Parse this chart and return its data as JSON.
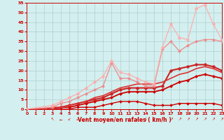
{
  "xlabel": "Vent moyen/en rafales ( km/h )",
  "xlim": [
    0,
    23
  ],
  "ylim": [
    0,
    55
  ],
  "yticks": [
    0,
    5,
    10,
    15,
    20,
    25,
    30,
    35,
    40,
    45,
    50,
    55
  ],
  "xticks": [
    0,
    1,
    2,
    3,
    4,
    5,
    6,
    7,
    8,
    9,
    10,
    11,
    12,
    13,
    14,
    15,
    16,
    17,
    18,
    19,
    20,
    21,
    22,
    23
  ],
  "bg_color": "#d4efef",
  "grid_color": "#aed0d0",
  "lines": [
    {
      "comment": "darkest red - small humped line near bottom, with markers",
      "x": [
        0,
        1,
        2,
        3,
        4,
        5,
        6,
        7,
        8,
        9,
        10,
        11,
        12,
        13,
        14,
        15,
        16,
        17,
        18,
        19,
        20,
        21,
        22,
        23
      ],
      "y": [
        0,
        0,
        0,
        0,
        0,
        0,
        1,
        1,
        1,
        2,
        3,
        4,
        4,
        4,
        3,
        2,
        2,
        2,
        3,
        3,
        3,
        3,
        3,
        2
      ],
      "color": "#cc0000",
      "lw": 1.0,
      "marker": "D",
      "ms": 2.0,
      "alpha": 1.0
    },
    {
      "comment": "dark red - gradually rising with slight dip, markers",
      "x": [
        0,
        1,
        2,
        3,
        4,
        5,
        6,
        7,
        8,
        9,
        10,
        11,
        12,
        13,
        14,
        15,
        16,
        17,
        18,
        19,
        20,
        21,
        22,
        23
      ],
      "y": [
        0,
        0,
        0,
        0,
        1,
        1,
        2,
        3,
        4,
        5,
        6,
        8,
        9,
        9,
        9,
        9,
        10,
        12,
        14,
        15,
        17,
        18,
        17,
        16
      ],
      "color": "#cc0000",
      "lw": 1.3,
      "marker": "D",
      "ms": 2.2,
      "alpha": 1.0
    },
    {
      "comment": "medium dark red - rises more steeply, with spike at x=17, markers",
      "x": [
        0,
        1,
        2,
        3,
        4,
        5,
        6,
        7,
        8,
        9,
        10,
        11,
        12,
        13,
        14,
        15,
        16,
        17,
        18,
        19,
        20,
        21,
        22,
        23
      ],
      "y": [
        0,
        0,
        0,
        0,
        1,
        2,
        3,
        4,
        5,
        6,
        8,
        10,
        11,
        11,
        11,
        11,
        12,
        20,
        21,
        22,
        23,
        23,
        22,
        20
      ],
      "color": "#cc2222",
      "lw": 1.5,
      "marker": "D",
      "ms": 2.5,
      "alpha": 1.0
    },
    {
      "comment": "medium red - smooth arc peaking around x=20-21",
      "x": [
        0,
        1,
        2,
        3,
        4,
        5,
        6,
        7,
        8,
        9,
        10,
        11,
        12,
        13,
        14,
        15,
        16,
        17,
        18,
        19,
        20,
        21,
        22,
        23
      ],
      "y": [
        0,
        0,
        0,
        1,
        1,
        2,
        3,
        4,
        6,
        7,
        9,
        11,
        12,
        13,
        13,
        13,
        14,
        16,
        18,
        19,
        21,
        22,
        21,
        19
      ],
      "color": "#dd3333",
      "lw": 1.2,
      "marker": null,
      "ms": 0,
      "alpha": 1.0
    },
    {
      "comment": "light pink - has jagged shape with spike near x=10 and x=15-17",
      "x": [
        0,
        3,
        4,
        5,
        6,
        7,
        8,
        9,
        10,
        11,
        12,
        13,
        14,
        15,
        16,
        17,
        18,
        19,
        20,
        21,
        22,
        23
      ],
      "y": [
        0,
        1,
        3,
        4,
        6,
        8,
        10,
        12,
        24,
        16,
        16,
        14,
        12,
        12,
        31,
        35,
        30,
        33,
        35,
        36,
        36,
        35
      ],
      "color": "#ee8888",
      "lw": 1.0,
      "marker": "D",
      "ms": 2.2,
      "alpha": 0.9
    },
    {
      "comment": "lightest pink - highest reaching, peaks at x=20-21 near 54",
      "x": [
        0,
        3,
        4,
        5,
        6,
        7,
        8,
        9,
        10,
        11,
        12,
        13,
        14,
        15,
        16,
        17,
        18,
        19,
        20,
        21,
        22,
        23
      ],
      "y": [
        0,
        2,
        4,
        6,
        8,
        11,
        14,
        17,
        25,
        19,
        18,
        16,
        14,
        13,
        32,
        44,
        37,
        36,
        52,
        54,
        44,
        36
      ],
      "color": "#ffaaaa",
      "lw": 1.0,
      "marker": "D",
      "ms": 2.5,
      "alpha": 0.85
    }
  ],
  "wind_dirs": {
    "x": [
      3,
      4,
      5,
      6,
      7,
      8,
      9,
      10,
      11,
      12,
      13,
      14,
      15,
      16,
      17,
      18,
      19,
      20,
      21,
      22,
      23
    ],
    "syms": [
      "↖",
      "←",
      "↙",
      "↙",
      "↓",
      "↓",
      "↙",
      "←",
      "↙",
      "↙",
      "↙",
      "↓",
      "↑",
      "↑",
      "↗",
      "↗",
      "↗",
      "↗",
      "↗",
      "↗",
      "↗"
    ]
  }
}
